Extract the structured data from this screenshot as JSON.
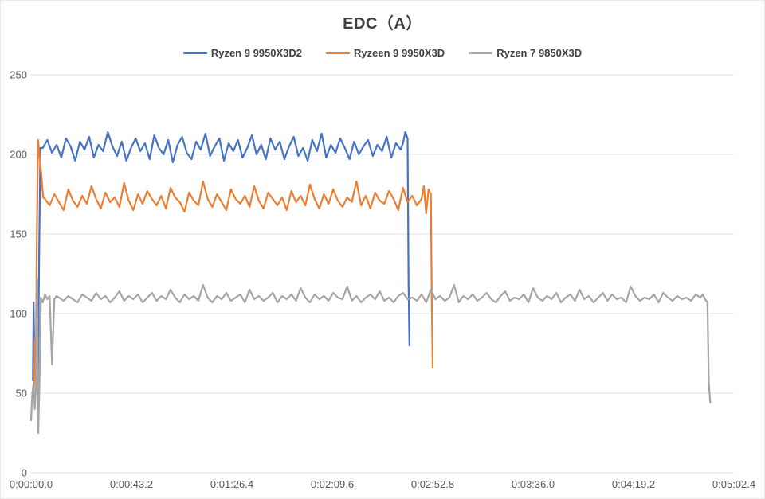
{
  "chart_data": {
    "type": "line",
    "title": "EDC（A）",
    "xlabel": "",
    "ylabel": "",
    "legend_position": "top",
    "grid": true,
    "colors": {
      "grid": "#e2e2e2",
      "axis_text": "#595959",
      "title_text": "#404040"
    },
    "y_axis": {
      "min": 0,
      "max": 250,
      "ticks": [
        0,
        50,
        100,
        150,
        200,
        250
      ]
    },
    "x_axis": {
      "max_seconds": 302.4,
      "tick_seconds": [
        0,
        43.2,
        86.4,
        129.6,
        172.8,
        216.0,
        259.2,
        302.4
      ],
      "tick_labels": [
        "0:00:00.0",
        "0:00:43.2",
        "0:01:26.4",
        "0:02:09.6",
        "0:02:52.8",
        "0:03:36.0",
        "0:04:19.2",
        "0:05:02.4"
      ]
    },
    "series": [
      {
        "name": "Ryzen 9 9950X3D2",
        "color": "#4472C4",
        "lead": [
          [
            0.8,
            58
          ],
          [
            1.1,
            107
          ],
          [
            1.5,
            64
          ],
          [
            2.2,
            62
          ],
          [
            3.0,
            61
          ],
          [
            3.5,
            140
          ],
          [
            4.0,
            204
          ]
        ],
        "body": {
          "start": 5,
          "step": 2,
          "values": [
            204,
            209,
            201,
            206,
            198,
            210,
            205,
            196,
            208,
            203,
            211,
            198,
            206,
            202,
            214,
            205,
            199,
            208,
            196,
            204,
            210,
            202,
            207,
            197,
            212,
            204,
            200,
            209,
            195,
            206,
            211,
            201,
            197,
            208,
            203,
            213,
            199,
            205,
            210,
            196,
            207,
            202,
            209,
            198,
            204,
            212,
            200,
            206,
            197,
            210,
            203,
            208,
            197,
            205,
            211,
            199,
            204,
            196,
            209,
            202,
            213,
            198,
            206,
            201,
            210,
            204,
            197,
            208,
            200,
            205,
            209,
            199,
            206,
            202,
            211,
            198,
            207,
            203
          ]
        },
        "tail": [
          [
            160,
            207
          ],
          [
            161,
            214
          ],
          [
            162,
            210
          ],
          [
            162.4,
            120
          ],
          [
            162.8,
            80
          ]
        ]
      },
      {
        "name": "Ryzeen 9 9950X3D",
        "color": "#ED7D31",
        "lead": [
          [
            1.2,
            50
          ],
          [
            1.6,
            84
          ],
          [
            2.0,
            58
          ],
          [
            2.5,
            150
          ],
          [
            3.0,
            209
          ],
          [
            3.8,
            197
          ],
          [
            4.5,
            186
          ],
          [
            5.2,
            173
          ]
        ],
        "body": {
          "start": 6,
          "step": 2,
          "values": [
            172,
            168,
            175,
            170,
            165,
            178,
            171,
            167,
            174,
            169,
            180,
            172,
            166,
            176,
            170,
            173,
            167,
            182,
            171,
            165,
            175,
            169,
            177,
            172,
            168,
            174,
            166,
            179,
            173,
            170,
            164,
            176,
            171,
            168,
            183,
            172,
            167,
            175,
            170,
            165,
            178,
            172,
            169,
            174,
            167,
            180,
            171,
            166,
            176,
            172,
            168,
            173,
            165,
            177,
            170,
            174,
            168,
            181,
            172,
            166,
            175,
            169,
            178,
            171,
            167,
            173,
            170,
            183,
            168,
            174,
            166,
            176,
            171,
            169,
            177,
            172,
            165,
            179,
            170,
            174,
            168,
            172
          ]
        },
        "tail": [
          [
            169,
            180
          ],
          [
            170,
            163
          ],
          [
            171,
            178
          ],
          [
            172,
            175
          ],
          [
            172.4,
            110
          ],
          [
            172.8,
            66
          ]
        ]
      },
      {
        "name": "Ryzen 7 9850X3D",
        "color": "#A5A5A5",
        "lead": [
          [
            0,
            33
          ],
          [
            0.5,
            50
          ],
          [
            1.0,
            55
          ],
          [
            1.6,
            40
          ],
          [
            2.1,
            54
          ],
          [
            2.6,
            122
          ],
          [
            3.1,
            25
          ],
          [
            3.6,
            55
          ],
          [
            4.2,
            110
          ],
          [
            5,
            107
          ],
          [
            6,
            112
          ],
          [
            7,
            109
          ],
          [
            8,
            111
          ],
          [
            9,
            68
          ],
          [
            10,
            109
          ],
          [
            11,
            111
          ]
        ],
        "body": {
          "start": 12,
          "step": 2,
          "values": [
            110,
            108,
            111,
            109,
            107,
            112,
            110,
            108,
            113,
            109,
            111,
            107,
            110,
            114,
            108,
            111,
            109,
            112,
            107,
            110,
            113,
            108,
            111,
            109,
            115,
            110,
            107,
            112,
            109,
            111,
            108,
            118,
            110,
            107,
            111,
            109,
            113,
            108,
            110,
            112,
            107,
            115,
            109,
            111,
            108,
            110,
            113,
            107,
            111,
            109,
            112,
            108,
            116,
            110,
            107,
            112,
            109,
            111,
            108,
            113,
            110,
            109,
            117,
            108,
            111,
            107,
            110,
            112,
            109,
            114,
            108,
            110,
            107,
            111,
            113,
            109,
            110,
            108,
            112,
            107,
            115,
            109,
            111,
            108,
            110,
            118,
            107,
            111,
            109,
            112,
            108,
            110,
            113,
            109,
            107,
            111,
            114,
            108,
            110,
            109,
            112,
            107,
            116,
            110,
            108,
            111,
            109,
            113,
            107,
            110,
            112,
            108,
            115,
            109,
            111,
            107,
            110,
            113,
            108,
            112,
            109,
            110,
            107,
            117,
            111,
            108,
            110,
            109,
            112,
            107,
            113,
            110,
            108,
            111,
            109,
            110,
            108,
            112
          ]
        },
        "tail": [
          [
            288,
            110
          ],
          [
            289,
            112
          ],
          [
            290,
            109
          ],
          [
            291,
            107
          ],
          [
            291.6,
            57
          ],
          [
            292.2,
            44
          ]
        ]
      }
    ]
  }
}
